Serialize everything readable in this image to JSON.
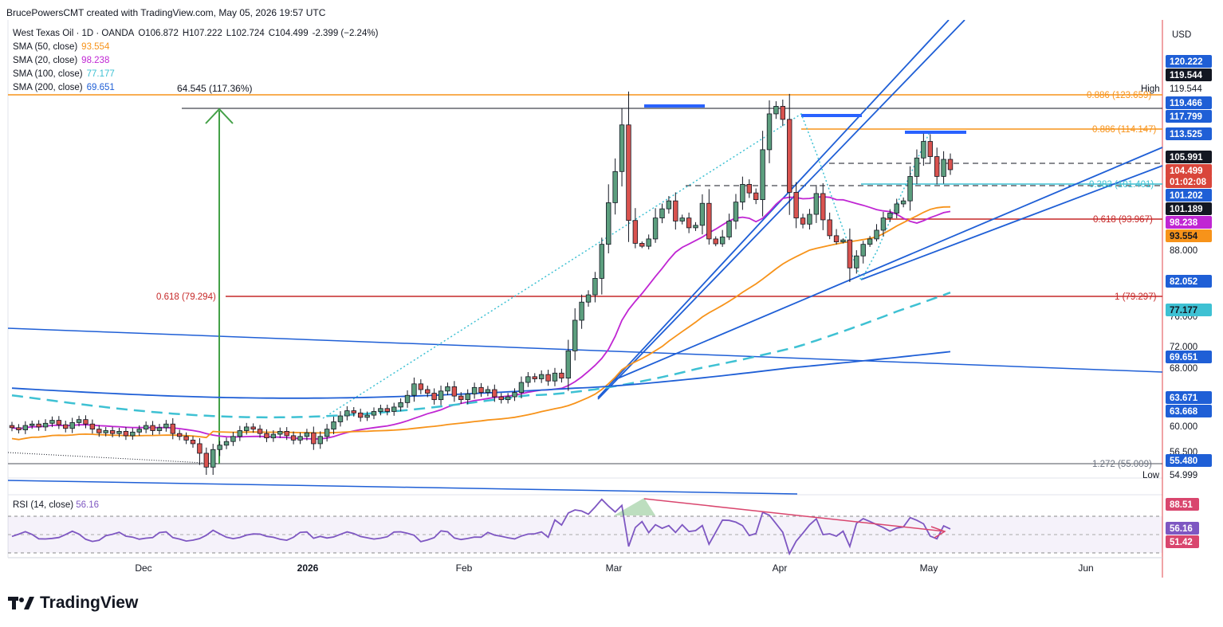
{
  "header": {
    "credit": "BrucePowersCMT created with TradingView.com, May 05, 2026 19:57 UTC"
  },
  "symbol": {
    "name": "West Texas Oil · 1D · OANDA",
    "open_label": "O",
    "open": "106.872",
    "high_label": "H",
    "high": "107.222",
    "low_label": "L",
    "low": "102.724",
    "close_label": "C",
    "close": "104.499",
    "change": "-2.399 (−2.24%)"
  },
  "indicators": [
    {
      "label": "SMA (50, close)",
      "value": "93.554",
      "color": "#f7931a"
    },
    {
      "label": "SMA (20, close)",
      "value": "98.238",
      "color": "#c026d3"
    },
    {
      "label": "SMA (100, close)",
      "value": "77.177",
      "color": "#3ec1d3"
    },
    {
      "label": "SMA (200, close)",
      "value": "69.651",
      "color": "#1f5fd6"
    }
  ],
  "currency": "USD",
  "annotations": {
    "measure": "64.545 (117.36%)",
    "fib_left": "0.618 (79.294)",
    "fib_0886_top": "0.886 (123.659)",
    "fib_0886": "0.886 (114.147)",
    "fib_0382": "0.382 (101.401)",
    "fib_0618": "0.618 (93.967)",
    "fib_1": "1 (79.297)",
    "fib_1272": "1.272 (55.009)",
    "high_label": "High",
    "low_label": "Low"
  },
  "price_axis": {
    "ticks": [
      "119.544",
      "88.000",
      "76.000",
      "72.000",
      "68.000",
      "60.000",
      "56.500",
      "54.999"
    ],
    "badges": [
      {
        "text": "120.222",
        "bg": "#1f5fd6",
        "fg": "#ffffff"
      },
      {
        "text": "119.544",
        "bg": "#131722",
        "fg": "#ffffff"
      },
      {
        "text": "119.466",
        "bg": "#1f5fd6",
        "fg": "#ffffff"
      },
      {
        "text": "117.799",
        "bg": "#1f5fd6",
        "fg": "#ffffff"
      },
      {
        "text": "113.525",
        "bg": "#1f5fd6",
        "fg": "#ffffff"
      },
      {
        "text": "105.991",
        "bg": "#131722",
        "fg": "#ffffff"
      },
      {
        "text": "104.499",
        "bg": "#d9463b",
        "fg": "#ffffff"
      },
      {
        "text": "01:02:08",
        "bg": "#d9463b",
        "fg": "#ffffff"
      },
      {
        "text": "101.202",
        "bg": "#1f5fd6",
        "fg": "#ffffff"
      },
      {
        "text": "101.189",
        "bg": "#131722",
        "fg": "#ffffff"
      },
      {
        "text": "98.238",
        "bg": "#c026d3",
        "fg": "#ffffff"
      },
      {
        "text": "93.554",
        "bg": "#f7931a",
        "fg": "#131722"
      },
      {
        "text": "82.052",
        "bg": "#1f5fd6",
        "fg": "#ffffff"
      },
      {
        "text": "77.177",
        "bg": "#3ec1d3",
        "fg": "#131722"
      },
      {
        "text": "69.651",
        "bg": "#1f5fd6",
        "fg": "#ffffff"
      },
      {
        "text": "63.671",
        "bg": "#1f5fd6",
        "fg": "#ffffff"
      },
      {
        "text": "63.668",
        "bg": "#1f5fd6",
        "fg": "#ffffff"
      },
      {
        "text": "55.480",
        "bg": "#1f5fd6",
        "fg": "#ffffff"
      }
    ]
  },
  "rsi": {
    "label": "RSI (14, close)",
    "value": "56.16",
    "badges": [
      {
        "text": "88.51",
        "bg": "#d9466e",
        "fg": "#ffffff"
      },
      {
        "text": "56.16",
        "bg": "#7e57c2",
        "fg": "#ffffff"
      },
      {
        "text": "51.42",
        "bg": "#d9466e",
        "fg": "#ffffff"
      }
    ]
  },
  "time_axis": [
    "Dec",
    "2026",
    "Feb",
    "Mar",
    "Apr",
    "May",
    "Jun"
  ],
  "brand": "TradingView",
  "chart_data": {
    "type": "candlestick",
    "symbol": "West Texas Oil",
    "timeframe": "1D",
    "source": "OANDA",
    "ohlc_last": {
      "open": 106.872,
      "high": 107.222,
      "low": 102.724,
      "close": 104.499
    },
    "candles_close": [
      59.8,
      59.5,
      60.1,
      60.3,
      59.9,
      60.4,
      60.8,
      60.2,
      59.7,
      60.5,
      60.9,
      60.3,
      59.6,
      59.1,
      59.4,
      59.0,
      59.3,
      58.7,
      59.2,
      59.6,
      60.1,
      59.4,
      59.8,
      60.3,
      59.0,
      58.6,
      58.1,
      57.6,
      56.4,
      55.5,
      56.8,
      57.4,
      57.9,
      58.6,
      59.4,
      59.9,
      59.6,
      59.0,
      58.4,
      58.9,
      59.3,
      58.7,
      58.1,
      58.6,
      59.1,
      57.6,
      58.6,
      59.6,
      60.6,
      61.4,
      62.1,
      61.8,
      61.2,
      61.5,
      62.0,
      62.4,
      62.0,
      62.6,
      63.2,
      64.2,
      65.8,
      65.0,
      64.5,
      63.6,
      64.8,
      65.4,
      64.1,
      63.6,
      64.4,
      65.3,
      64.6,
      65.0,
      64.0,
      63.6,
      64.0,
      64.6,
      66.0,
      66.8,
      66.5,
      67.1,
      66.2,
      67.3,
      66.6,
      71.2,
      75.8,
      78.6,
      79.8,
      82.6,
      90.4,
      99.1,
      104.2,
      111.0,
      96.2,
      90.8,
      89.6,
      92.6,
      96.6,
      98.1,
      99.4,
      96.1,
      96.6,
      95.0,
      95.4,
      99.0,
      92.6,
      90.6,
      93.4,
      96.1,
      99.2,
      102.1,
      100.7,
      99.6,
      107.4,
      112.6,
      113.7,
      111.8,
      100.8,
      96.6,
      95.6,
      97.2,
      100.6,
      96.3,
      93.7,
      91.4,
      92.2,
      84.6,
      86.9,
      90.4,
      92.6,
      94.6,
      96.6,
      97.4,
      98.9,
      99.4,
      103.4,
      106.2,
      108.6,
      106.4,
      103.4,
      106.0,
      104.5
    ],
    "lines": {
      "sma50_last": 93.554,
      "sma20_last": 98.238,
      "sma100_last": 77.177,
      "sma200_last": 69.651
    },
    "fibonacci": [
      {
        "level": 0.886,
        "price": 123.659
      },
      {
        "level": 0.886,
        "price": 114.147
      },
      {
        "level": 0.382,
        "price": 101.401
      },
      {
        "level": 0.618,
        "price": 93.967
      },
      {
        "level": 0.618,
        "price": 79.294
      },
      {
        "level": 1,
        "price": 79.297
      },
      {
        "level": 1.272,
        "price": 55.009
      }
    ],
    "rsi_last": 56.16
  }
}
